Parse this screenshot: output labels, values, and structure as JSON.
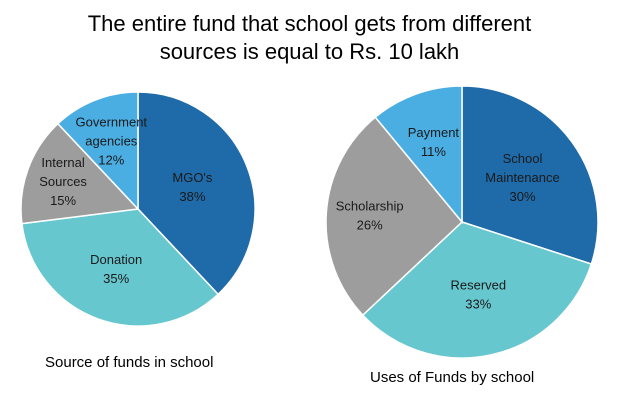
{
  "title": {
    "line1": "The entire fund that school gets from different",
    "line2": "sources is equal to Rs. 10 lakh"
  },
  "chart_data": [
    {
      "type": "pie",
      "title": "Source of funds in school",
      "slices": [
        {
          "label": [
            "MGO's"
          ],
          "value": 38,
          "display": "38%",
          "color": "#1f6aa8"
        },
        {
          "label": [
            "Donation"
          ],
          "value": 35,
          "display": "35%",
          "color": "#67c7cf"
        },
        {
          "label": [
            "Internal",
            "Sources"
          ],
          "value": 15,
          "display": "15%",
          "color": "#9d9d9d"
        },
        {
          "label": [
            "Government",
            "agencies"
          ],
          "value": 12,
          "display": "12%",
          "color": "#4baee3"
        }
      ]
    },
    {
      "type": "pie",
      "title": "Uses of Funds by school",
      "slices": [
        {
          "label": [
            "School",
            "Maintenance"
          ],
          "value": 30,
          "display": "30%",
          "color": "#1f6aa8"
        },
        {
          "label": [
            "Reserved"
          ],
          "value": 33,
          "display": "33%",
          "color": "#67c7cf"
        },
        {
          "label": [
            "Scholarship"
          ],
          "value": 26,
          "display": "26%",
          "color": "#9d9d9d"
        },
        {
          "label": [
            "Payment"
          ],
          "value": 11,
          "display": "11%",
          "color": "#4baee3"
        }
      ]
    }
  ]
}
